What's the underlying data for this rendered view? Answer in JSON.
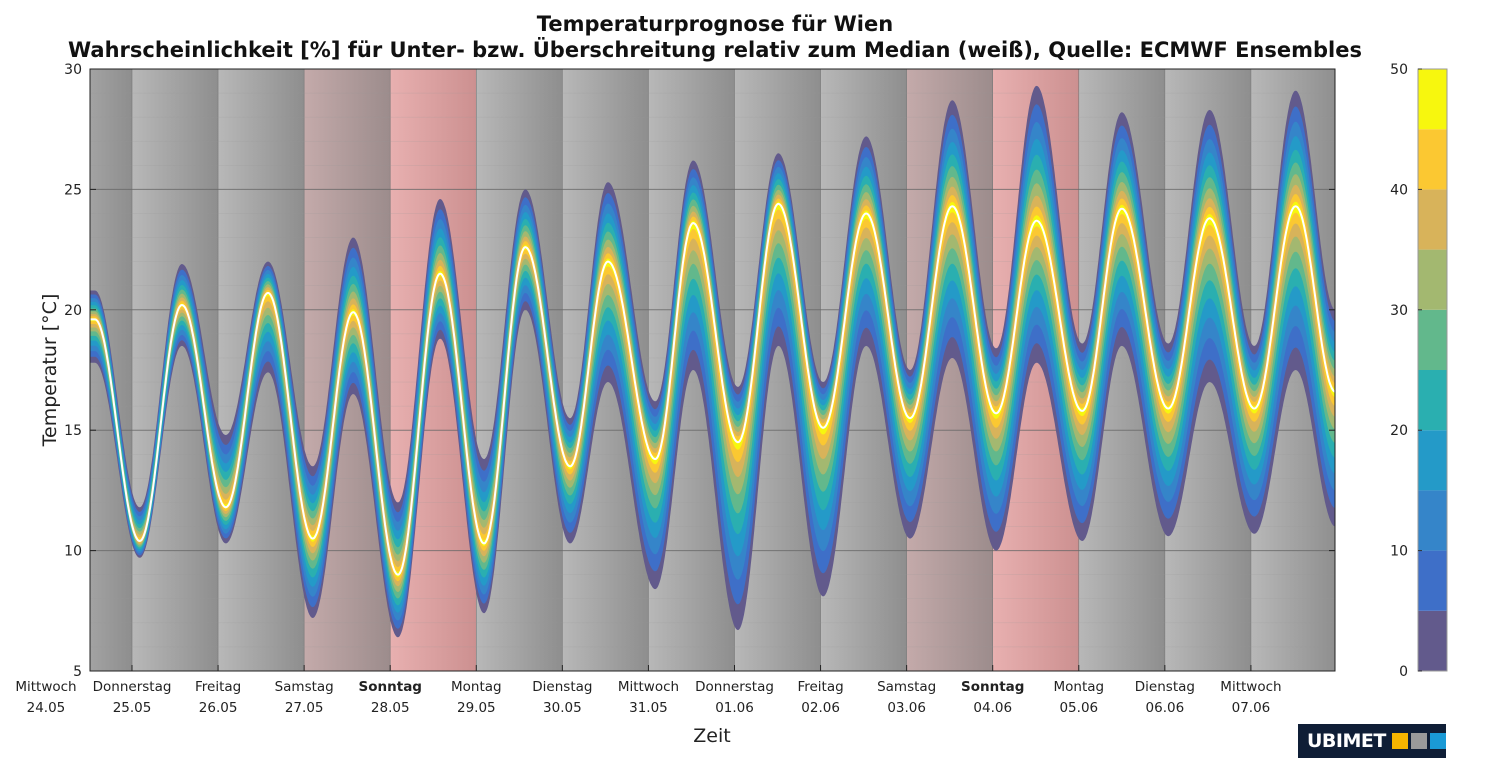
{
  "chart_data": {
    "type": "area",
    "title": "Temperaturprognose für Wien",
    "subtitle": "Wahrscheinlichkeit [%] für Unter- bzw. Überschreitung relativ zum Median (weiß), Quelle: ECMWF Ensembles",
    "xlabel": "Zeit",
    "ylabel": "Temperatur [°C]",
    "ylim": [
      5,
      30
    ],
    "yticks": [
      "5",
      "10",
      "15",
      "20",
      "25",
      "30"
    ],
    "ytick_values": [
      5,
      10,
      15,
      20,
      25,
      30
    ],
    "xlim_days": [
      0.51,
      15.0
    ],
    "days": [
      {
        "weekday": "Mittwoch",
        "date": "24.05",
        "type": "weekday"
      },
      {
        "weekday": "Donnerstag",
        "date": "25.05",
        "type": "weekday"
      },
      {
        "weekday": "Freitag",
        "date": "26.05",
        "type": "weekday"
      },
      {
        "weekday": "Samstag",
        "date": "27.05",
        "type": "saturday"
      },
      {
        "weekday": "Sonntag",
        "date": "28.05",
        "type": "sunday"
      },
      {
        "weekday": "Montag",
        "date": "29.05",
        "type": "weekday"
      },
      {
        "weekday": "Dienstag",
        "date": "30.05",
        "type": "weekday"
      },
      {
        "weekday": "Mittwoch",
        "date": "31.05",
        "type": "weekday"
      },
      {
        "weekday": "Donnerstag",
        "date": "01.06",
        "type": "weekday"
      },
      {
        "weekday": "Freitag",
        "date": "02.06",
        "type": "weekday"
      },
      {
        "weekday": "Samstag",
        "date": "03.06",
        "type": "saturday"
      },
      {
        "weekday": "Sonntag",
        "date": "04.06",
        "type": "sunday"
      },
      {
        "weekday": "Montag",
        "date": "05.06",
        "type": "weekday"
      },
      {
        "weekday": "Dienstag",
        "date": "06.06",
        "type": "weekday"
      },
      {
        "weekday": "Mittwoch",
        "date": "07.06",
        "type": "weekday"
      }
    ],
    "series": {
      "t_days": [
        0.57,
        1.09,
        1.58,
        2.09,
        2.58,
        3.1,
        3.57,
        4.09,
        4.58,
        5.09,
        5.57,
        6.09,
        6.53,
        7.08,
        7.52,
        8.04,
        8.51,
        9.03,
        9.53,
        10.04,
        10.53,
        11.04,
        11.51,
        12.04,
        12.5,
        13.04,
        13.52,
        14.04,
        14.52,
        14.98
      ],
      "median": [
        19.6,
        10.4,
        20.2,
        11.8,
        20.7,
        10.5,
        19.9,
        9.0,
        21.5,
        10.3,
        22.6,
        13.5,
        22.0,
        13.8,
        23.6,
        14.5,
        24.4,
        15.1,
        24.0,
        15.5,
        24.3,
        15.7,
        23.7,
        15.8,
        24.2,
        15.9,
        23.8,
        15.9,
        24.3,
        16.6
      ],
      "ensemble_min": [
        17.8,
        9.7,
        18.5,
        10.3,
        17.4,
        7.2,
        16.5,
        6.4,
        18.8,
        7.4,
        20.0,
        10.3,
        17.0,
        8.4,
        17.5,
        6.7,
        18.5,
        8.1,
        18.5,
        10.5,
        18.0,
        10.0,
        17.8,
        10.4,
        18.5,
        10.6,
        17.0,
        10.7,
        17.5,
        11.0
      ],
      "ensemble_max": [
        20.8,
        11.8,
        21.9,
        14.8,
        22.0,
        13.5,
        23.0,
        12.0,
        24.6,
        13.8,
        25.0,
        15.5,
        25.3,
        16.2,
        26.2,
        16.8,
        26.5,
        17.0,
        27.2,
        17.5,
        28.7,
        18.4,
        29.3,
        18.6,
        28.2,
        18.6,
        28.3,
        18.5,
        29.1,
        20.0
      ]
    },
    "colorbar": {
      "ticks": [
        "0",
        "10",
        "20",
        "30",
        "40",
        "50"
      ],
      "tick_values": [
        0,
        10,
        20,
        30,
        40,
        50
      ],
      "levels": [
        0,
        5,
        10,
        15,
        20,
        25,
        30,
        35,
        40,
        45,
        50
      ],
      "colors": [
        "#625a8c",
        "#3e6fc8",
        "#3585c9",
        "#249ac8",
        "#2aafb0",
        "#62b88c",
        "#a3b870",
        "#d8b35a",
        "#fbc832",
        "#f7f70e"
      ]
    },
    "median_color": "#ffffff"
  },
  "logo": {
    "text": "UBIMET"
  }
}
